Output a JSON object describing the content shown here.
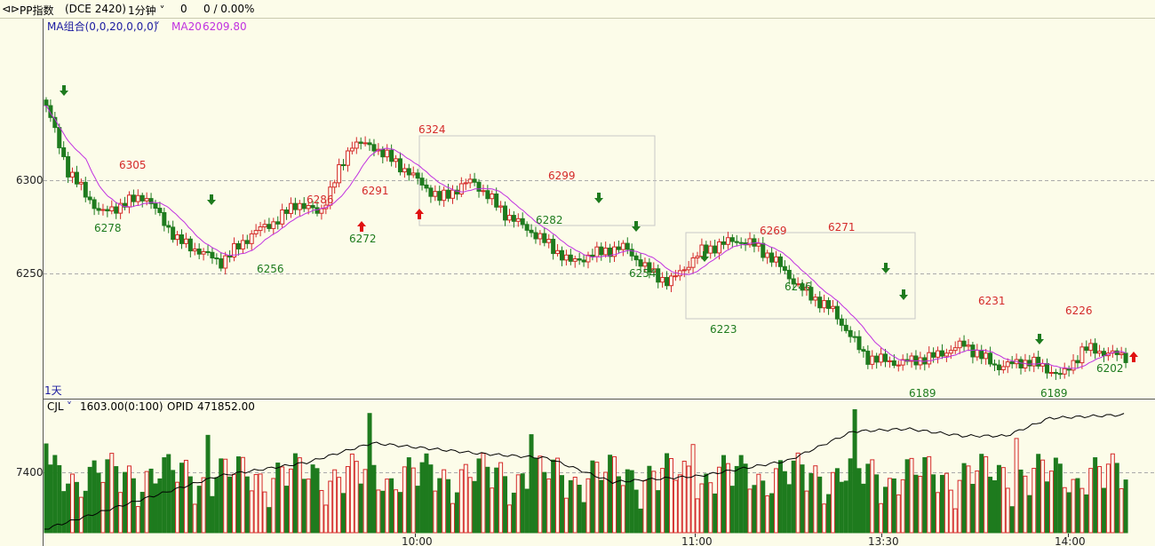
{
  "topbar": {
    "back_icon": "back-arrow-icon",
    "symbol": "PP指数",
    "code": "(DCE 2420)",
    "period": "1分钟",
    "price": "0",
    "change": "0 / 0.00%"
  },
  "main_panel": {
    "indicator_name": "MA组合(0,0,20,0,0,0)",
    "ma_label": "MA20",
    "ma_value": "6209.80",
    "period_label": "1天",
    "y_ticks": [
      "6300",
      "6250"
    ]
  },
  "volume_panel": {
    "indicator_name": "CJL",
    "value": "1603.00(0:100)",
    "opid_label": "OPID",
    "opid_value": "471852.00",
    "y_ticks": [
      "7400"
    ]
  },
  "colors": {
    "background": "#fcfce9",
    "up": "#d42a2a",
    "down": "#1e7b1e",
    "ma": "#c030e0",
    "arrow_up": "#e01010",
    "arrow_down": "#1e7b1e"
  },
  "chart_data": {
    "type": "candlestick",
    "x_ticks": [
      "10:00",
      "11:00",
      "13:30",
      "14:00"
    ],
    "price_labels_high": [
      "6305",
      "6286",
      "6291",
      "6324",
      "6299",
      "6269",
      "6271",
      "6231",
      "6226"
    ],
    "price_labels_low": [
      "6278",
      "6256",
      "6272",
      "6282",
      "6254",
      "6223",
      "6246",
      "6189",
      "6189",
      "6202"
    ],
    "ma20_last": 6209.8,
    "ylim_price": [
      6180,
      6345
    ],
    "volume_tick": 7400
  }
}
